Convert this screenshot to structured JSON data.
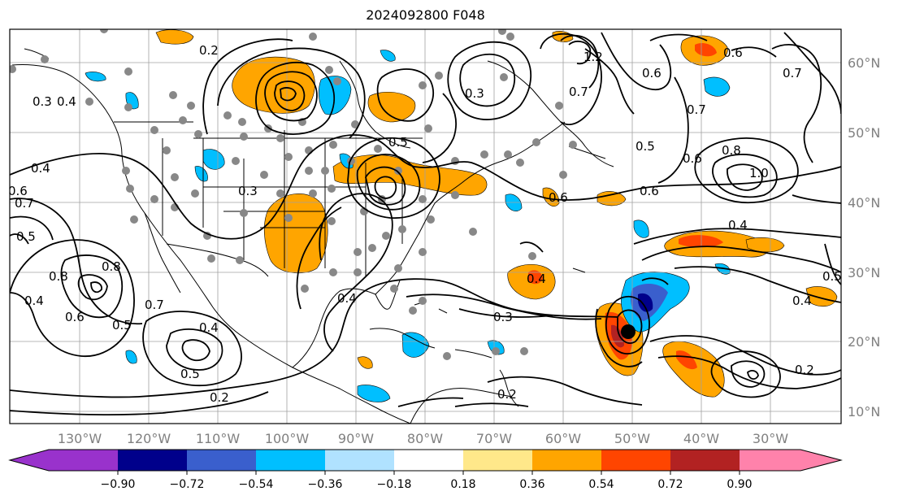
{
  "title": "2024092800 F048",
  "lon_labels": [
    "130°W",
    "120°W",
    "110°W",
    "100°W",
    "90°W",
    "80°W",
    "70°W",
    "60°W",
    "50°W",
    "40°W",
    "30°W"
  ],
  "lat_labels": [
    "60°N",
    "50°N",
    "40°N",
    "30°N",
    "20°N",
    "10°N"
  ],
  "colorbar": {
    "tick_labels": [
      "−0.90",
      "−0.72",
      "−0.54",
      "−0.36",
      "−0.18",
      "0.18",
      "0.36",
      "0.54",
      "0.72",
      "0.90"
    ],
    "colors": [
      "#9932cc",
      "#00008b",
      "#3a5fcd",
      "#00bfff",
      "#b0e2ff",
      "#ffffff",
      "#ffe88a",
      "#ffa500",
      "#ff4500",
      "#b22222",
      "#ff82ab"
    ]
  },
  "contour_labels": [
    "0.2",
    "0.4",
    "0.5",
    "0.6",
    "0.7",
    "0.8",
    "0.3",
    "0.4",
    "0.5",
    "0.7",
    "0.8",
    "0.6",
    "0.4",
    "0.5",
    "0.3",
    "0.4",
    "0.3",
    "0.2",
    "0.2",
    "0.6",
    "0.6",
    "0.7",
    "1.0",
    "0.5",
    "0.4",
    "0.3",
    "0.4",
    "0.4",
    "0.5",
    "0.7",
    "0.6",
    "0.8",
    "1.2",
    "0.6",
    "0.7",
    "0.5",
    "0.4",
    "0.2",
    "0.6"
  ],
  "colors": {
    "grid": "#a0a0a0",
    "coast": "#000000",
    "station": "#888888",
    "axis_text": "#808080"
  }
}
